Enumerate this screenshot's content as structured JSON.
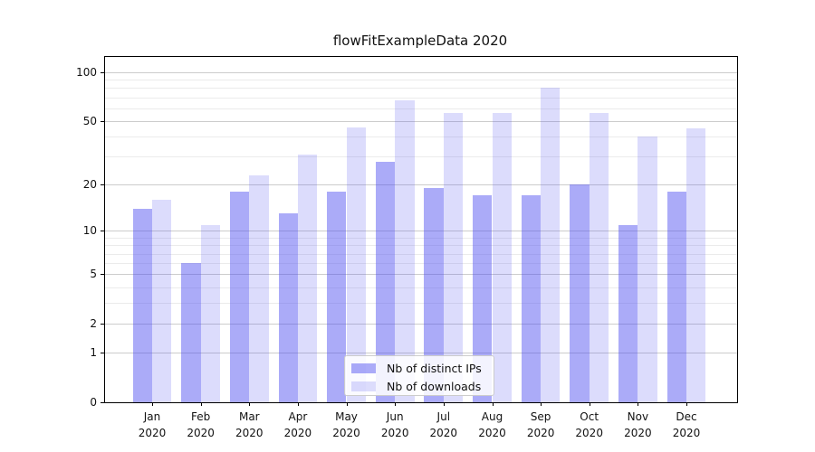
{
  "title": "flowFitExampleData 2020",
  "legend": {
    "items": [
      {
        "label": "Nb of distinct IPs",
        "color": "#a8a8f7",
        "fill_rgba": "rgba(80,80,240,0.48)"
      },
      {
        "label": "Nb of downloads",
        "color": "#dbdbfa",
        "fill_rgba": "rgba(80,80,240,0.20)"
      }
    ]
  },
  "chart_data": {
    "type": "bar",
    "title": "flowFitExampleData 2020",
    "categories": [
      "Jan 2020",
      "Feb 2020",
      "Mar 2020",
      "Apr 2020",
      "May 2020",
      "Jun 2020",
      "Jul 2020",
      "Aug 2020",
      "Sep 2020",
      "Oct 2020",
      "Nov 2020",
      "Dec 2020"
    ],
    "series": [
      {
        "name": "Nb of distinct IPs",
        "values": [
          14,
          6,
          18,
          13,
          18,
          28,
          19,
          17,
          17,
          20,
          11,
          18
        ],
        "color": "#a8a8f7",
        "fill_rgba": "rgba(80,80,240,0.48)"
      },
      {
        "name": "Nb of downloads",
        "values": [
          16,
          11,
          23,
          31,
          46,
          67,
          56,
          56,
          80,
          56,
          40,
          45
        ],
        "color": "#dbdbfa",
        "fill_rgba": "rgba(80,80,240,0.20)"
      }
    ],
    "xlabel": "",
    "ylabel": "",
    "yscale": "symlog-ln(1+x)",
    "yticks": [
      0,
      1,
      2,
      5,
      10,
      20,
      50,
      100
    ],
    "minor_yticks": [
      3,
      4,
      6,
      7,
      8,
      9,
      30,
      40,
      60,
      70,
      80,
      90
    ],
    "ylim": [
      0,
      123
    ],
    "grid": true,
    "legend_position": "lower center",
    "axis_color": "#000000",
    "major_grid_color": "#cccccc",
    "minor_grid_color": "#ebebeb"
  }
}
